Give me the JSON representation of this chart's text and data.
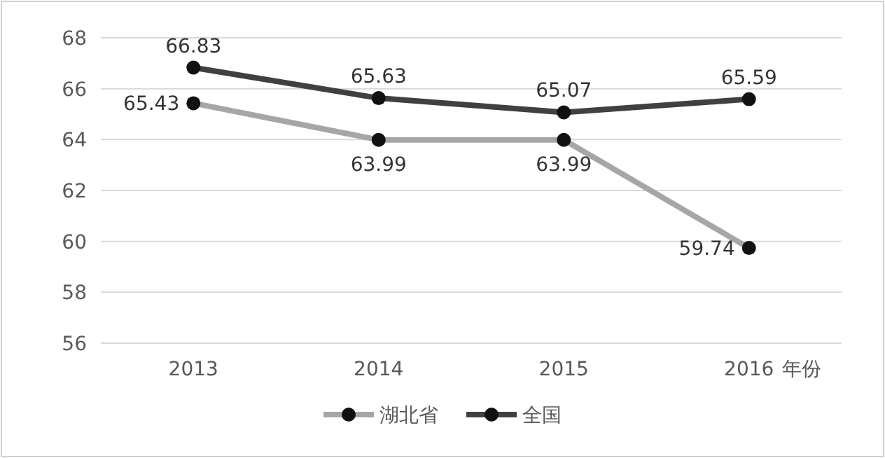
{
  "chart_data": {
    "type": "line",
    "xlabel": "年份",
    "categories": [
      "2013",
      "2014",
      "2015",
      "2016"
    ],
    "series": [
      {
        "name": "湖北省",
        "color": "#a6a6a6",
        "values": [
          65.43,
          63.99,
          63.99,
          59.74
        ]
      },
      {
        "name": "全国",
        "color": "#404040",
        "values": [
          66.83,
          65.63,
          65.07,
          65.59
        ]
      }
    ],
    "ylim": [
      56,
      68
    ],
    "yticks": [
      56,
      58,
      60,
      62,
      64,
      66,
      68
    ],
    "grid": "y",
    "legend": "bottom",
    "marker": "circle",
    "data_labels": true
  }
}
